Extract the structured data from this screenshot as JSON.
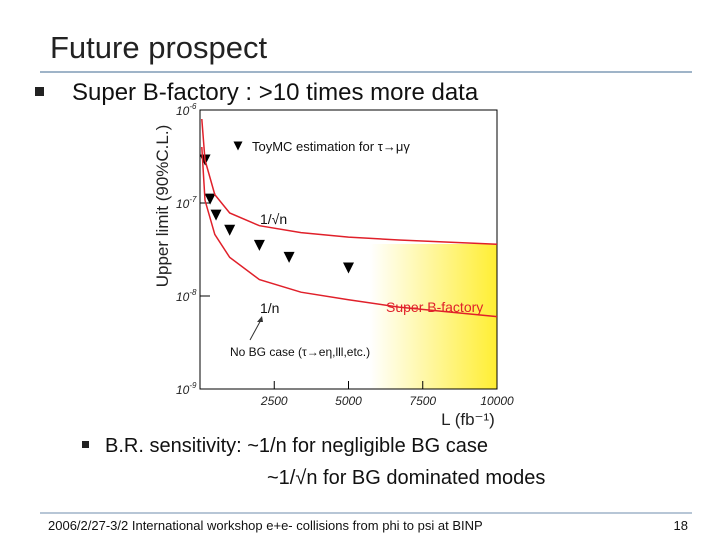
{
  "slide": {
    "title": "Future prospect",
    "bullet": "Super B-factory : >10 times more data",
    "sub_bullet_lines": [
      "B.R. sensitivity: ~1/n for negligible BG case",
      "~1/√n for BG dominated modes"
    ],
    "footer": "2006/2/27-3/2 International workshop e+e- collisions from phi to psi at BINP",
    "page_number": 18
  },
  "chart_data": {
    "type": "line",
    "x_label": "L (fb⁻¹)",
    "y_label": "Upper limit (90%C.L.)",
    "xlim": [
      0,
      10000
    ],
    "xticks": [
      2500,
      5000,
      7500,
      10000
    ],
    "ylim": [
      1e-09,
      1e-06
    ],
    "log_y": true,
    "yticks": [
      {
        "value": 1e-09,
        "label": "10",
        "exponent": "-9"
      },
      {
        "value": 1e-08,
        "label": "10",
        "exponent": "-8"
      },
      {
        "value": 1e-07,
        "label": "10",
        "exponent": "-7"
      },
      {
        "value": 1e-06,
        "label": "10",
        "exponent": "-6"
      }
    ],
    "series": [
      {
        "name": "ToyMC estimation for τ→μγ",
        "color": "#000000",
        "marker": "triangle-down",
        "x": [
          170,
          340,
          540,
          1000,
          2000,
          3000,
          5000
        ],
        "values": [
          2.9e-07,
          1.1e-07,
          7.4e-08,
          5.1e-08,
          3.5e-08,
          2.6e-08,
          2e-08
        ]
      },
      {
        "name": "1/√n",
        "color": "#e0202a",
        "x": [
          60,
          170,
          500,
          1000,
          2000,
          3400,
          5000,
          6700,
          10000
        ],
        "values": [
          8e-07,
          2.9e-07,
          1.23e-07,
          7.8e-08,
          5.7e-08,
          4.8e-08,
          4.3e-08,
          4e-08,
          3.6e-08
        ]
      },
      {
        "name": "1/n",
        "color": "#e0202a",
        "x": [
          60,
          170,
          500,
          1000,
          2000,
          3400,
          5000,
          6700,
          10000
        ],
        "values": [
          4e-07,
          1.07e-07,
          4.6e-08,
          2.6e-08,
          1.5e-08,
          1.1e-08,
          9.1e-09,
          7.6e-09,
          6e-09
        ]
      }
    ],
    "annotations": [
      "Super B-factory",
      "No BG case (τ→eη,lll,etc.)"
    ]
  }
}
